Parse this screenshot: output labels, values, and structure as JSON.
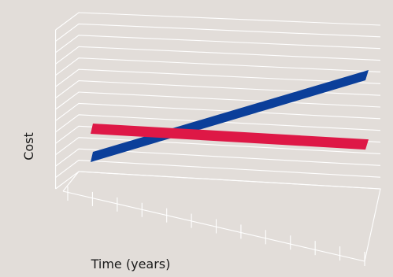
{
  "chart_data": {
    "type": "line",
    "title": "",
    "xlabel": "Time (years)",
    "ylabel": "Cost",
    "grid": true,
    "perspective": "3d",
    "x_ticks": 12,
    "y_gridlines": 14,
    "series": [
      {
        "color": "#0b3f9a",
        "start": 0.1,
        "end": 0.88
      },
      {
        "color": "#de1846",
        "start": 0.34,
        "end": 0.26
      }
    ]
  }
}
